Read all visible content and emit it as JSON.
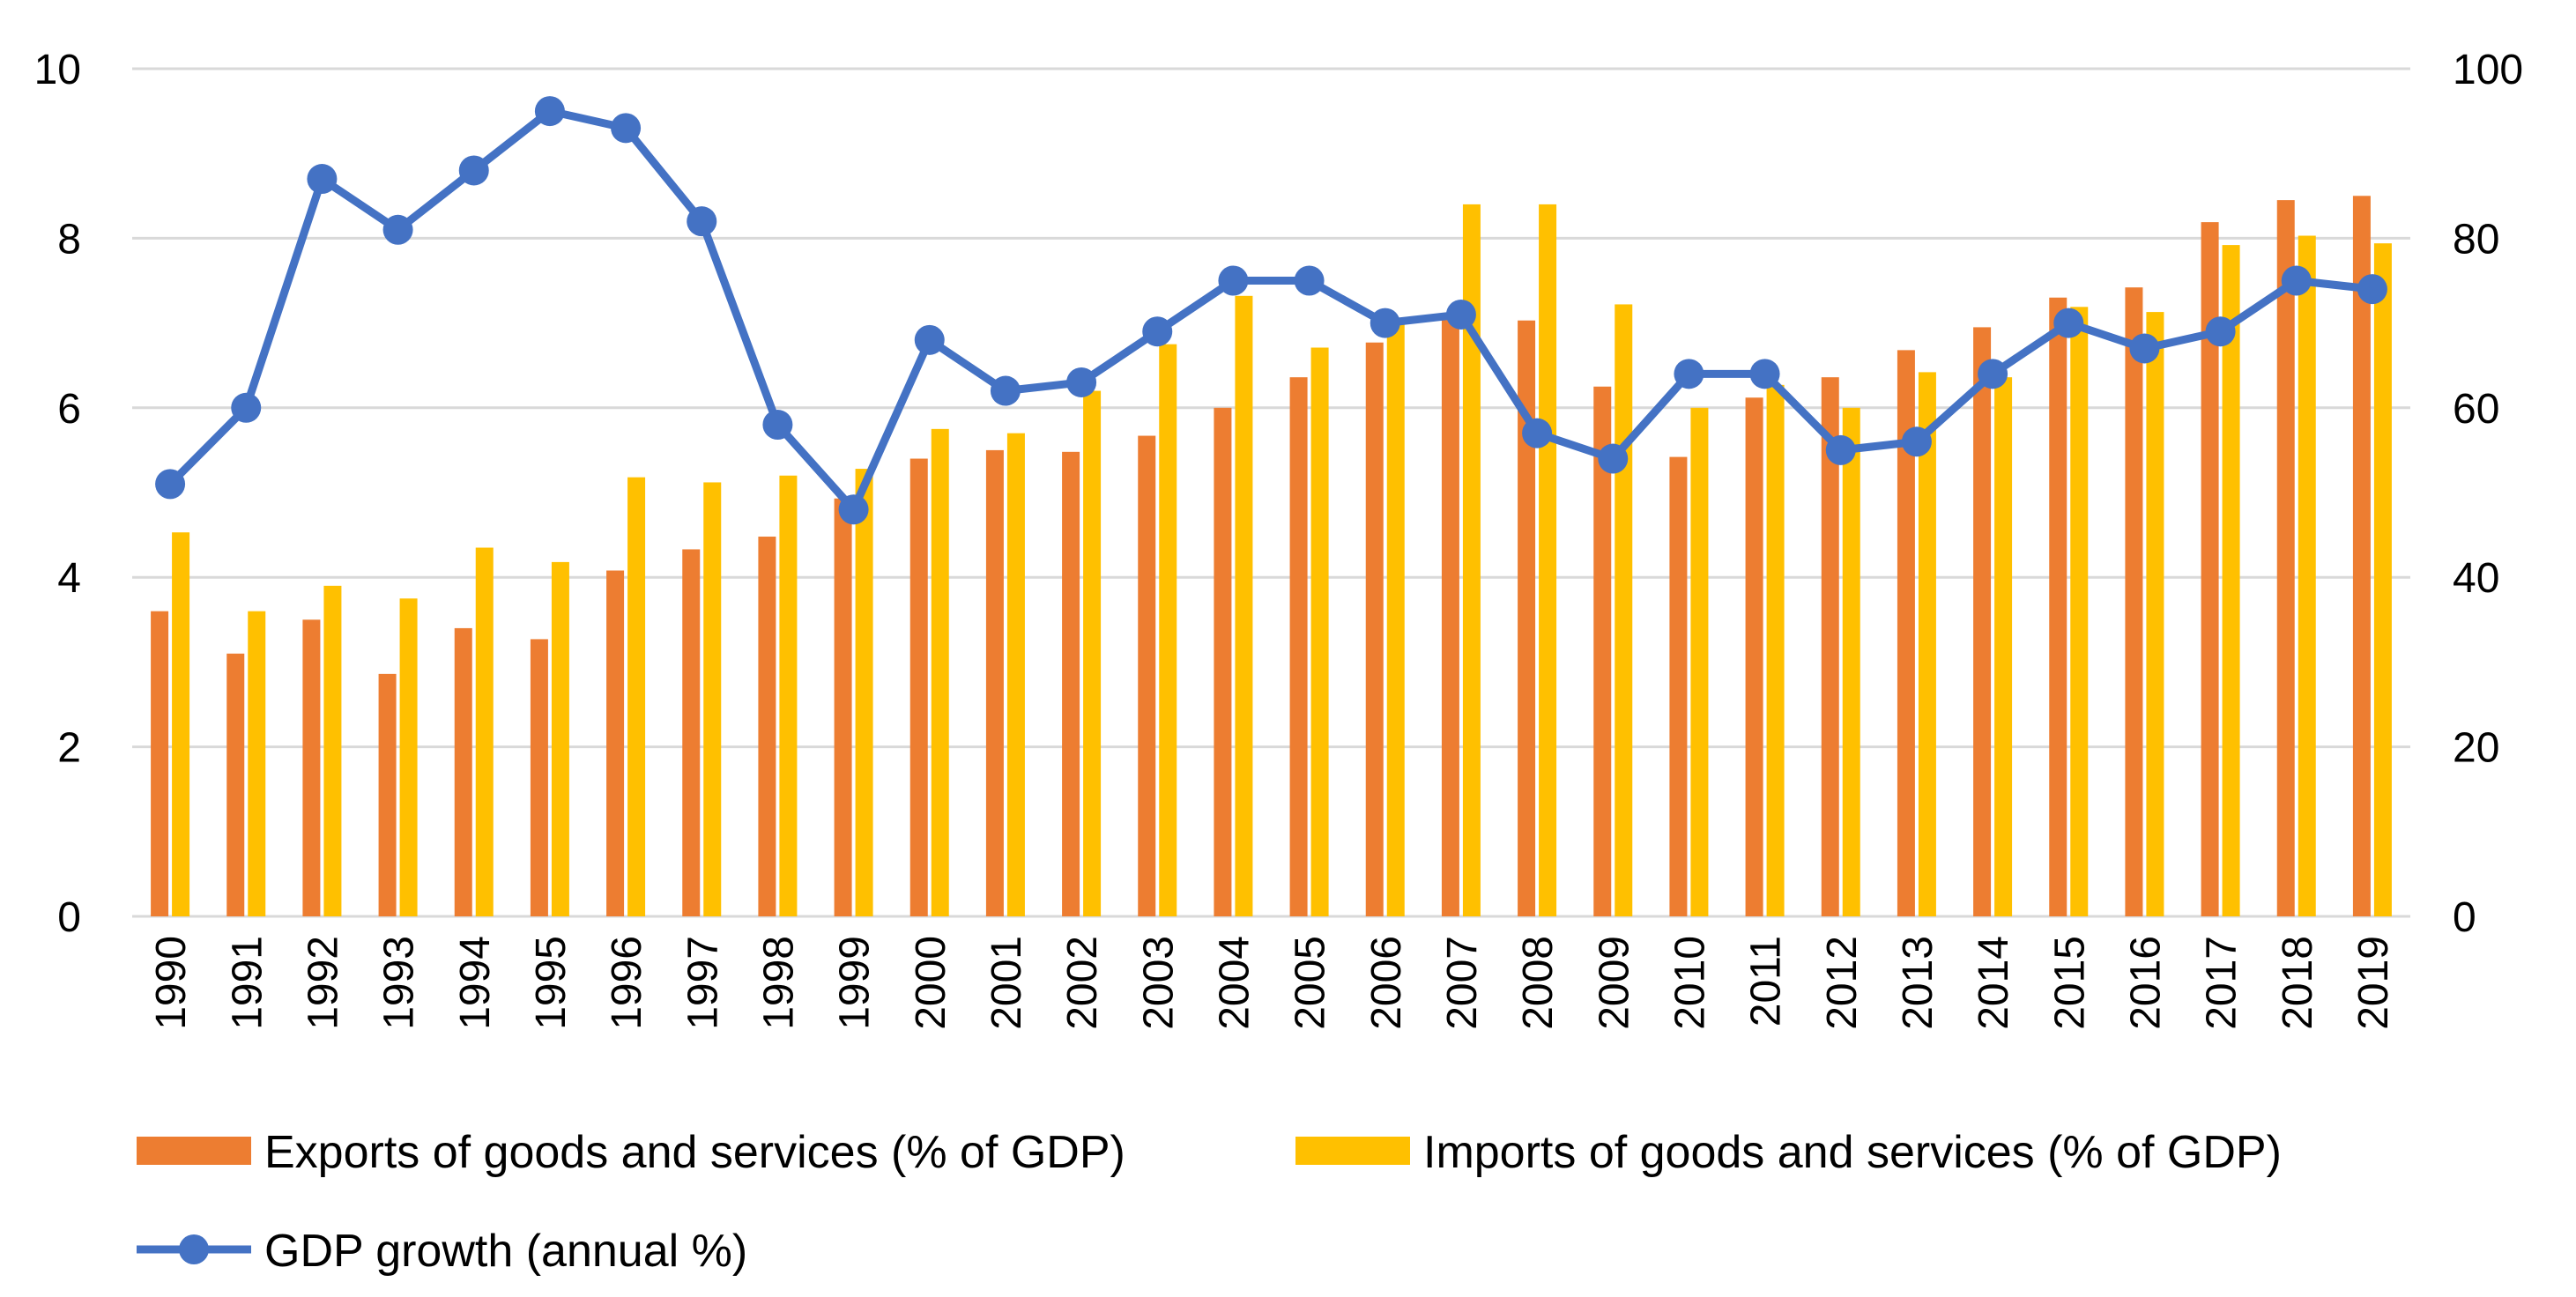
{
  "chart_data": {
    "type": "bar+line",
    "categories": [
      "1990",
      "1991",
      "1992",
      "1993",
      "1994",
      "1995",
      "1996",
      "1997",
      "1998",
      "1999",
      "2000",
      "2001",
      "2002",
      "2003",
      "2004",
      "2005",
      "2006",
      "2007",
      "2008",
      "2009",
      "2010",
      "2011",
      "2012",
      "2013",
      "2014",
      "2015",
      "2016",
      "2017",
      "2018",
      "2019"
    ],
    "left_axis": {
      "min": 0,
      "max": 10,
      "ticks": [
        "0",
        "2",
        "4",
        "6",
        "8",
        "10"
      ]
    },
    "right_axis": {
      "min": 0,
      "max": 100,
      "ticks": [
        "0",
        "20",
        "40",
        "60",
        "80",
        "100"
      ]
    },
    "grid": true,
    "legend_position": "bottom",
    "series": [
      {
        "name": "Exports of goods and services (% of GDP)",
        "type": "bar",
        "axis": "right",
        "color": "#ed7d31",
        "values": [
          36,
          31,
          35,
          28.6,
          34,
          32.7,
          40.8,
          43.3,
          44.8,
          49.3,
          54,
          55,
          54.8,
          56.7,
          60,
          63.6,
          67.7,
          71,
          70.3,
          62.5,
          54.2,
          61.2,
          63.6,
          66.8,
          69.5,
          73,
          74.2,
          81.9,
          84.5,
          85
        ]
      },
      {
        "name": "Imports of goods and services (% of GDP)",
        "type": "bar",
        "axis": "right",
        "color": "#ffc000",
        "values": [
          45.3,
          36,
          39,
          37.5,
          43.5,
          41.8,
          51.8,
          51.2,
          52,
          52.8,
          57.5,
          57,
          62,
          67.5,
          73.2,
          67.1,
          70.3,
          84,
          84,
          72.2,
          60,
          62.7,
          60,
          64.2,
          63.6,
          71.9,
          71.3,
          79.2,
          80.3,
          79.4
        ]
      },
      {
        "name": "GDP growth (annual %)",
        "type": "line",
        "axis": "left",
        "color": "#4472c4",
        "values": [
          5.1,
          6.0,
          8.7,
          8.1,
          8.8,
          9.5,
          9.3,
          8.2,
          5.8,
          4.8,
          6.8,
          6.2,
          6.3,
          6.9,
          7.5,
          7.5,
          7.0,
          7.1,
          5.7,
          5.4,
          6.4,
          6.4,
          5.5,
          5.6,
          6.4,
          7.0,
          6.7,
          6.9,
          7.5,
          7.4
        ]
      }
    ]
  }
}
